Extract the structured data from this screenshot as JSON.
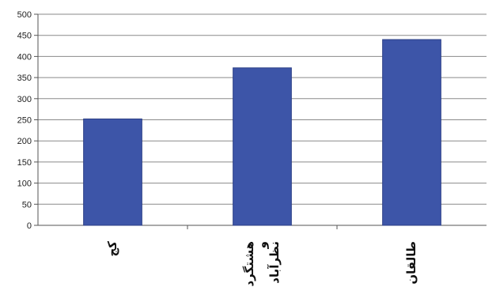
{
  "chart_data": {
    "type": "bar",
    "categories": [
      "کج",
      "هشتگرد و نظرآباد",
      "طالقان"
    ],
    "category_lines": [
      [
        "کج"
      ],
      [
        "هشتگرد",
        "و",
        "نظرآباد"
      ],
      [
        "طالقان"
      ]
    ],
    "values": [
      252,
      373,
      440
    ],
    "ylim": [
      0,
      500
    ],
    "ytick_step": 50,
    "yticks": [
      "0",
      "50",
      "100",
      "150",
      "200",
      "250",
      "300",
      "350",
      "400",
      "450",
      "500"
    ],
    "grid": true,
    "legend": "none",
    "colors": {
      "bar": "#3d55a8",
      "bar_edge": "#2c3f86",
      "grid": "#8a8a8a",
      "axis": "#555555",
      "background": "#ffffff"
    }
  }
}
